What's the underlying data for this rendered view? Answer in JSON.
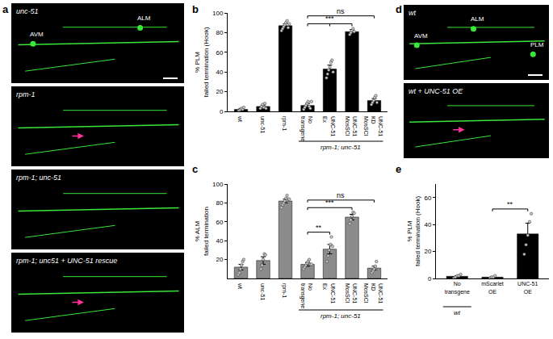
{
  "chart_data": [
    {
      "panel": "b",
      "type": "bar",
      "categories": [
        "wt",
        "unc-51",
        "rpm-1",
        "No transgene",
        "UNC-51 Ex",
        "UNC-51 MosSCI",
        "UNC-51 KD MosSCI"
      ],
      "values": [
        2,
        5,
        87,
        6,
        43,
        81,
        11
      ],
      "errors": [
        1,
        1.5,
        2,
        2,
        4,
        2,
        2
      ],
      "points": [
        [
          0,
          1,
          2,
          3,
          2,
          4
        ],
        [
          3,
          5,
          7,
          4,
          8,
          3
        ],
        [
          82,
          84,
          86,
          88,
          90,
          92,
          85,
          89
        ],
        [
          2,
          4,
          6,
          8,
          10,
          5,
          3,
          10
        ],
        [
          34,
          38,
          42,
          45,
          50,
          52,
          40
        ],
        [
          78,
          80,
          82,
          84,
          81
        ],
        [
          7,
          9,
          11,
          14,
          16,
          9
        ]
      ],
      "color": "#000000",
      "ylim": [
        0,
        100
      ],
      "yticks": [
        0,
        20,
        40,
        60,
        80,
        100
      ],
      "y_label_lines": [
        "% PLM",
        "failed termination (Hook)"
      ],
      "group": {
        "label": "rpm-1; unc-51",
        "from": 3,
        "to": 6
      },
      "significance": [
        {
          "from": 3,
          "to": [
            4,
            5
          ],
          "label": "***"
        },
        {
          "from": 3,
          "to": [
            6
          ],
          "label": "ns"
        }
      ],
      "grid": false
    },
    {
      "panel": "c",
      "type": "bar",
      "categories": [
        "wt",
        "unc-51",
        "rpm-1",
        "No transgene",
        "UNC-51 Ex",
        "UNC-51 MosSCI",
        "UNC-51 KD MosSCI"
      ],
      "values": [
        12,
        19,
        82,
        15,
        31,
        65,
        11
      ],
      "errors": [
        3,
        4,
        2,
        2,
        5,
        3,
        2
      ],
      "points": [
        [
          4,
          6,
          10,
          14,
          18,
          20
        ],
        [
          10,
          14,
          20,
          26,
          25
        ],
        [
          75,
          78,
          80,
          82,
          85,
          88,
          84,
          84
        ],
        [
          10,
          12,
          14,
          16,
          18,
          20,
          15,
          15
        ],
        [
          18,
          24,
          30,
          36,
          44,
          34
        ],
        [
          58,
          62,
          66,
          70,
          69
        ],
        [
          6,
          8,
          10,
          13,
          18
        ]
      ],
      "color": "#8c8c8c",
      "ylim": [
        0,
        100
      ],
      "yticks": [
        20,
        40,
        60,
        80,
        100
      ],
      "y_label_lines": [
        "% ALM",
        "failed termination"
      ],
      "group": {
        "label": "rpm-1; unc-51",
        "from": 3,
        "to": 6
      },
      "significance": [
        {
          "from": 3,
          "to": [
            4
          ],
          "label": "**"
        },
        {
          "from": 3,
          "to": [
            5
          ],
          "label": "***"
        },
        {
          "from": 3,
          "to": [
            6
          ],
          "label": "ns"
        }
      ],
      "grid": false
    },
    {
      "panel": "e",
      "type": "bar",
      "categories": [
        "No transgene",
        "mScarlet OE",
        "UNC-51 OE"
      ],
      "values": [
        1.6,
        1,
        33
      ],
      "errors": [
        0.5,
        0.5,
        8
      ],
      "points": [
        [
          0,
          1,
          2,
          2,
          3
        ],
        [
          0,
          1,
          1,
          2
        ],
        [
          18,
          25,
          32,
          42,
          48
        ]
      ],
      "color": "#000000",
      "ylim": [
        0,
        70
      ],
      "yticks": [
        0,
        20,
        40,
        60
      ],
      "y_label_lines": [
        "% PLM",
        "failed termination (Hook)"
      ],
      "group": {
        "label": "wt",
        "from": 0,
        "to": 0
      },
      "significance": [
        {
          "from": 1,
          "to": [
            2
          ],
          "label": "**"
        }
      ],
      "grid": false
    }
  ],
  "image_panels": [
    {
      "panel": "a",
      "images": [
        {
          "label": "unc-51",
          "cells": [
            "ALM",
            "AVM"
          ]
        },
        {
          "label": "rpm-1",
          "cells": []
        },
        {
          "label": "rpm-1; unc-51",
          "cells": []
        },
        {
          "label": "rpm-1; unc51 + UNC-51 rescue",
          "cells": []
        }
      ]
    },
    {
      "panel": "d",
      "images": [
        {
          "label": "wt",
          "cells": [
            "ALM",
            "AVM",
            "PLM"
          ]
        },
        {
          "label": "wt + UNC-51 OE",
          "cells": []
        }
      ]
    }
  ]
}
